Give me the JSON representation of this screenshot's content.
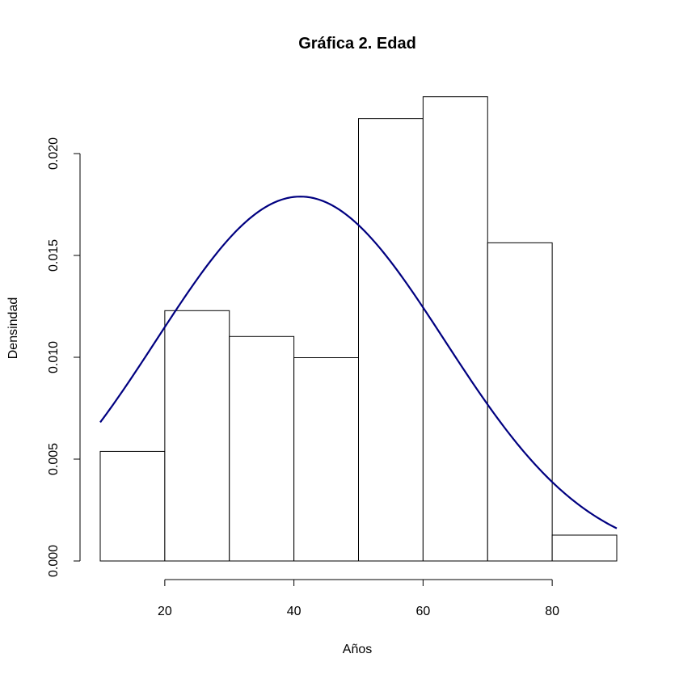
{
  "chart_data": {
    "type": "bar",
    "title": "Gráfica 2. Edad",
    "xlabel": "Años",
    "ylabel": "Densindad",
    "bins": [
      {
        "from": 10,
        "to": 20,
        "density": 0.00538
      },
      {
        "from": 20,
        "to": 30,
        "density": 0.01229
      },
      {
        "from": 30,
        "to": 40,
        "density": 0.01102
      },
      {
        "from": 40,
        "to": 50,
        "density": 0.00998
      },
      {
        "from": 50,
        "to": 60,
        "density": 0.02172
      },
      {
        "from": 60,
        "to": 70,
        "density": 0.02279
      },
      {
        "from": 70,
        "to": 80,
        "density": 0.01562
      },
      {
        "from": 80,
        "to": 90,
        "density": 0.00127
      }
    ],
    "density_curve": {
      "type": "normal",
      "mean": 41,
      "sd": 22.3,
      "x_range": [
        10,
        90
      ],
      "color": "#000080"
    },
    "xlim": [
      10,
      90
    ],
    "ylim": [
      0,
      0.0229
    ],
    "x_ticks": [
      20,
      40,
      60,
      80
    ],
    "x_tick_labels": [
      "20",
      "40",
      "60",
      "80"
    ],
    "y_ticks": [
      0,
      0.005,
      0.01,
      0.015,
      0.02
    ],
    "y_tick_labels": [
      "0.000",
      "0.005",
      "0.010",
      "0.015",
      "0.020"
    ],
    "grid": false,
    "bar_fill": "#ffffff",
    "bar_stroke": "#000000"
  }
}
